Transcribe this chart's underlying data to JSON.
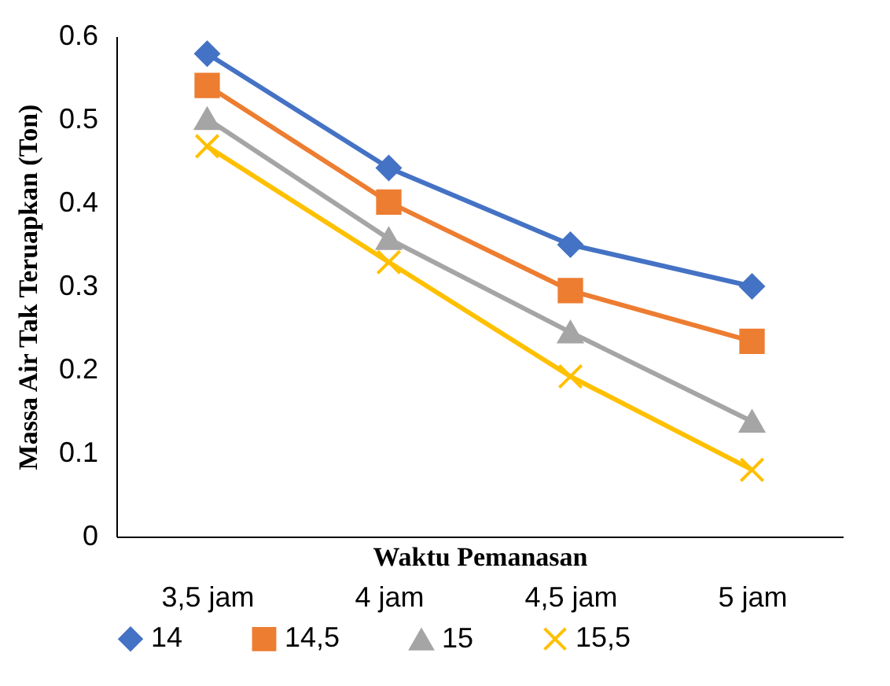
{
  "chart_data": {
    "type": "line",
    "xlabel": "Waktu Pemanasan",
    "ylabel": "Massa Air Tak Teruapkan (Ton)",
    "categories": [
      "3,5 jam",
      "4 jam",
      "4,5 jam",
      "5 jam"
    ],
    "ylim": [
      0,
      0.6
    ],
    "yticks": [
      0,
      0.1,
      0.2,
      0.3,
      0.4,
      0.5,
      0.6
    ],
    "grid": false,
    "legend": "bottom",
    "series": [
      {
        "name": "14",
        "color": "#4472c4",
        "marker": "diamond",
        "values": [
          0.579,
          0.442,
          0.35,
          0.3
        ]
      },
      {
        "name": "14,5",
        "color": "#ed7d31",
        "marker": "square",
        "values": [
          0.541,
          0.401,
          0.295,
          0.234
        ]
      },
      {
        "name": "15",
        "color": "#a5a5a5",
        "marker": "triangle",
        "values": [
          0.501,
          0.357,
          0.245,
          0.138
        ]
      },
      {
        "name": "15,5",
        "color": "#ffc000",
        "marker": "cross",
        "values": [
          0.468,
          0.329,
          0.192,
          0.08
        ]
      }
    ]
  }
}
